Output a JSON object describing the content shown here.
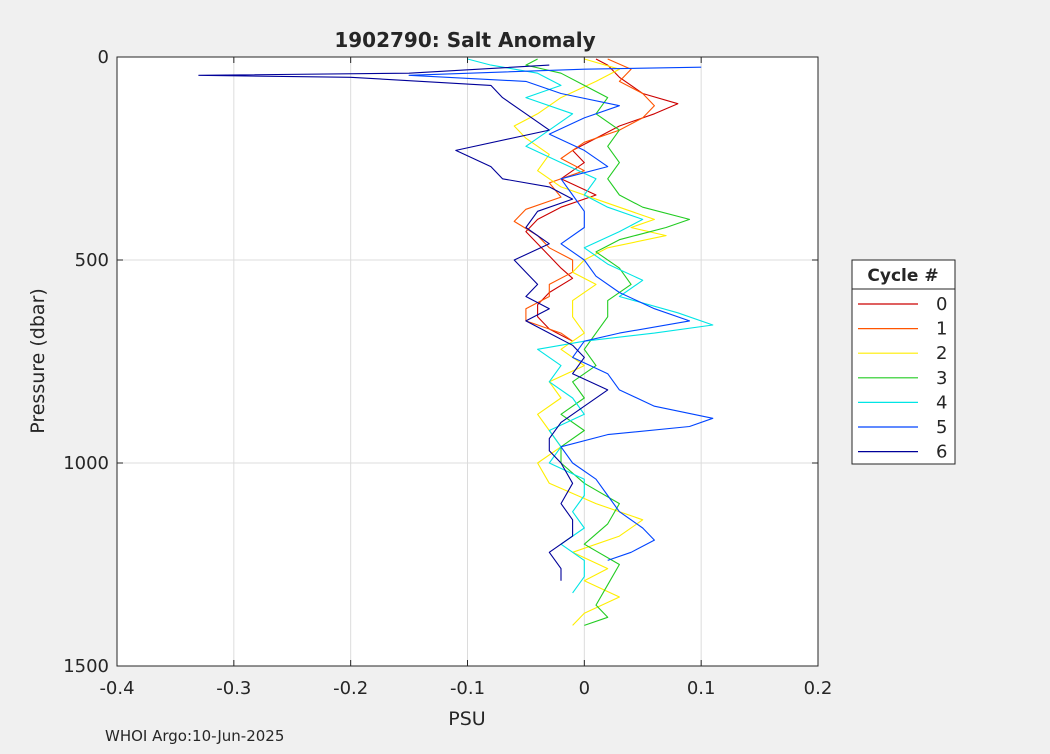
{
  "chart_data": {
    "type": "line",
    "title": "1902790: Salt Anomaly",
    "xlabel": "PSU",
    "ylabel": "Pressure (dbar)",
    "xlim": [
      -0.4,
      0.2
    ],
    "ylim": [
      0,
      1500
    ],
    "y_reversed": true,
    "grid": true,
    "x_ticks": [
      -0.4,
      -0.3,
      -0.2,
      -0.1,
      0,
      0.1,
      0.2
    ],
    "x_tick_labels": [
      "-0.4",
      "-0.3",
      "-0.2",
      "-0.1",
      "0",
      "0.1",
      "0.2"
    ],
    "y_ticks": [
      0,
      500,
      1000,
      1500
    ],
    "y_tick_labels": [
      "0",
      "500",
      "1000",
      "1500"
    ],
    "legend_title": "Cycle #",
    "legend_position": "outside-right",
    "footer": "WHOI Argo:10-Jun-2025",
    "series": [
      {
        "name": "0",
        "color": "#cc0000",
        "points": [
          [
            0.01,
            5
          ],
          [
            0.02,
            20
          ],
          [
            0.03,
            50
          ],
          [
            0.05,
            90
          ],
          [
            0.08,
            115
          ],
          [
            0.06,
            140
          ],
          [
            0.03,
            170
          ],
          [
            0.01,
            200
          ],
          [
            -0.01,
            230
          ],
          [
            0.0,
            260
          ],
          [
            -0.02,
            300
          ],
          [
            0.01,
            340
          ],
          [
            -0.02,
            370
          ],
          [
            -0.04,
            400
          ],
          [
            -0.05,
            430
          ],
          [
            -0.04,
            460
          ],
          [
            -0.03,
            490
          ],
          [
            -0.02,
            520
          ],
          [
            -0.01,
            545
          ],
          [
            -0.03,
            580
          ],
          [
            -0.04,
            610
          ],
          [
            -0.04,
            640
          ],
          [
            -0.03,
            670
          ],
          [
            -0.01,
            700
          ]
        ]
      },
      {
        "name": "1",
        "color": "#ff5500",
        "points": [
          [
            0.02,
            5
          ],
          [
            0.04,
            30
          ],
          [
            0.03,
            60
          ],
          [
            0.05,
            90
          ],
          [
            0.06,
            120
          ],
          [
            0.05,
            150
          ],
          [
            0.03,
            180
          ],
          [
            0.0,
            210
          ],
          [
            -0.02,
            250
          ],
          [
            0.0,
            280
          ],
          [
            -0.03,
            310
          ],
          [
            -0.02,
            345
          ],
          [
            -0.05,
            375
          ],
          [
            -0.06,
            405
          ],
          [
            -0.04,
            440
          ],
          [
            -0.03,
            470
          ],
          [
            -0.01,
            500
          ],
          [
            -0.01,
            530
          ],
          [
            -0.03,
            560
          ],
          [
            -0.03,
            590
          ],
          [
            -0.05,
            620
          ],
          [
            -0.05,
            650
          ],
          [
            -0.02,
            680
          ],
          [
            -0.01,
            700
          ]
        ]
      },
      {
        "name": "2",
        "color": "#ffee00",
        "points": [
          [
            0.0,
            5
          ],
          [
            0.03,
            30
          ],
          [
            0.01,
            60
          ],
          [
            -0.02,
            100
          ],
          [
            -0.04,
            140
          ],
          [
            -0.06,
            170
          ],
          [
            -0.05,
            200
          ],
          [
            -0.03,
            240
          ],
          [
            -0.04,
            280
          ],
          [
            -0.02,
            320
          ],
          [
            0.02,
            360
          ],
          [
            0.06,
            400
          ],
          [
            0.04,
            420
          ],
          [
            0.07,
            440
          ],
          [
            0.02,
            470
          ],
          [
            0.0,
            500
          ],
          [
            -0.01,
            530
          ],
          [
            0.01,
            560
          ],
          [
            -0.01,
            600
          ],
          [
            -0.01,
            640
          ],
          [
            0.0,
            680
          ],
          [
            -0.02,
            720
          ],
          [
            0.0,
            760
          ],
          [
            -0.03,
            800
          ],
          [
            -0.02,
            840
          ],
          [
            -0.04,
            880
          ],
          [
            -0.03,
            920
          ],
          [
            -0.02,
            960
          ],
          [
            -0.04,
            1000
          ],
          [
            -0.03,
            1050
          ],
          [
            0.01,
            1100
          ],
          [
            0.05,
            1140
          ],
          [
            0.03,
            1180
          ],
          [
            -0.01,
            1220
          ],
          [
            0.02,
            1260
          ],
          [
            0.0,
            1290
          ],
          [
            0.03,
            1330
          ],
          [
            0.0,
            1370
          ],
          [
            -0.01,
            1400
          ]
        ]
      },
      {
        "name": "3",
        "color": "#22cc22",
        "points": [
          [
            -0.04,
            5
          ],
          [
            -0.05,
            20
          ],
          [
            -0.02,
            40
          ],
          [
            0.0,
            70
          ],
          [
            0.02,
            100
          ],
          [
            0.01,
            140
          ],
          [
            0.03,
            180
          ],
          [
            0.02,
            220
          ],
          [
            0.03,
            260
          ],
          [
            0.02,
            300
          ],
          [
            0.03,
            340
          ],
          [
            0.05,
            370
          ],
          [
            0.09,
            400
          ],
          [
            0.07,
            420
          ],
          [
            0.03,
            450
          ],
          [
            0.01,
            480
          ],
          [
            0.03,
            520
          ],
          [
            0.04,
            560
          ],
          [
            0.02,
            600
          ],
          [
            0.02,
            640
          ],
          [
            0.01,
            680
          ],
          [
            0.0,
            720
          ],
          [
            0.01,
            760
          ],
          [
            -0.01,
            800
          ],
          [
            0.0,
            840
          ],
          [
            -0.02,
            880
          ],
          [
            0.0,
            920
          ],
          [
            -0.02,
            960
          ],
          [
            -0.02,
            1000
          ],
          [
            0.0,
            1050
          ],
          [
            0.03,
            1100
          ],
          [
            0.02,
            1150
          ],
          [
            0.0,
            1200
          ],
          [
            0.03,
            1250
          ],
          [
            0.02,
            1300
          ],
          [
            0.01,
            1350
          ],
          [
            0.02,
            1380
          ],
          [
            0.0,
            1400
          ]
        ]
      },
      {
        "name": "4",
        "color": "#00e5e5",
        "points": [
          [
            -0.1,
            5
          ],
          [
            -0.08,
            20
          ],
          [
            -0.04,
            40
          ],
          [
            -0.02,
            70
          ],
          [
            -0.05,
            100
          ],
          [
            -0.01,
            140
          ],
          [
            -0.03,
            180
          ],
          [
            -0.05,
            220
          ],
          [
            -0.02,
            260
          ],
          [
            0.01,
            300
          ],
          [
            0.0,
            340
          ],
          [
            0.02,
            370
          ],
          [
            0.05,
            400
          ],
          [
            0.03,
            430
          ],
          [
            0.0,
            470
          ],
          [
            0.02,
            510
          ],
          [
            0.05,
            550
          ],
          [
            0.03,
            590
          ],
          [
            0.08,
            630
          ],
          [
            0.11,
            660
          ],
          [
            0.06,
            680
          ],
          [
            0.0,
            700
          ],
          [
            -0.04,
            720
          ],
          [
            -0.02,
            760
          ],
          [
            -0.03,
            800
          ],
          [
            -0.01,
            840
          ],
          [
            0.0,
            880
          ],
          [
            -0.03,
            920
          ],
          [
            -0.02,
            960
          ],
          [
            -0.03,
            1000
          ],
          [
            0.0,
            1040
          ],
          [
            0.0,
            1080
          ],
          [
            -0.01,
            1120
          ],
          [
            0.0,
            1160
          ],
          [
            -0.02,
            1200
          ],
          [
            0.0,
            1240
          ],
          [
            0.0,
            1280
          ],
          [
            -0.01,
            1320
          ]
        ]
      },
      {
        "name": "5",
        "color": "#0044ff",
        "points": [
          [
            0.1,
            25
          ],
          [
            0.0,
            30
          ],
          [
            -0.15,
            45
          ],
          [
            -0.05,
            60
          ],
          [
            -0.02,
            90
          ],
          [
            0.03,
            120
          ],
          [
            0.0,
            150
          ],
          [
            -0.03,
            190
          ],
          [
            0.0,
            230
          ],
          [
            0.02,
            270
          ],
          [
            -0.02,
            300
          ],
          [
            -0.01,
            340
          ],
          [
            0.0,
            380
          ],
          [
            0.0,
            420
          ],
          [
            -0.02,
            460
          ],
          [
            0.0,
            500
          ],
          [
            0.01,
            540
          ],
          [
            0.03,
            580
          ],
          [
            0.06,
            620
          ],
          [
            0.09,
            650
          ],
          [
            0.03,
            680
          ],
          [
            0.0,
            700
          ],
          [
            -0.01,
            740
          ],
          [
            0.02,
            780
          ],
          [
            0.03,
            820
          ],
          [
            0.06,
            860
          ],
          [
            0.11,
            890
          ],
          [
            0.09,
            910
          ],
          [
            0.02,
            930
          ],
          [
            -0.02,
            960
          ],
          [
            -0.01,
            1000
          ],
          [
            0.01,
            1040
          ],
          [
            0.02,
            1080
          ],
          [
            0.03,
            1120
          ],
          [
            0.05,
            1160
          ],
          [
            0.06,
            1190
          ],
          [
            0.04,
            1220
          ],
          [
            0.02,
            1240
          ]
        ]
      },
      {
        "name": "6",
        "color": "#000099",
        "points": [
          [
            -0.03,
            20
          ],
          [
            -0.15,
            40
          ],
          [
            -0.33,
            45
          ],
          [
            -0.2,
            50
          ],
          [
            -0.08,
            70
          ],
          [
            -0.07,
            100
          ],
          [
            -0.05,
            140
          ],
          [
            -0.03,
            180
          ],
          [
            -0.11,
            230
          ],
          [
            -0.08,
            270
          ],
          [
            -0.07,
            300
          ],
          [
            -0.03,
            320
          ],
          [
            -0.01,
            350
          ],
          [
            -0.04,
            380
          ],
          [
            -0.05,
            420
          ],
          [
            -0.03,
            460
          ],
          [
            -0.06,
            500
          ],
          [
            -0.05,
            530
          ],
          [
            -0.04,
            560
          ],
          [
            -0.05,
            590
          ],
          [
            -0.03,
            620
          ],
          [
            -0.05,
            650
          ],
          [
            -0.03,
            680
          ],
          [
            -0.01,
            710
          ],
          [
            0.0,
            740
          ],
          [
            -0.01,
            780
          ],
          [
            0.02,
            820
          ],
          [
            0.0,
            860
          ],
          [
            -0.02,
            900
          ],
          [
            -0.03,
            940
          ],
          [
            -0.03,
            970
          ],
          [
            -0.02,
            1000
          ],
          [
            -0.01,
            1050
          ],
          [
            -0.02,
            1100
          ],
          [
            -0.01,
            1140
          ],
          [
            -0.01,
            1180
          ],
          [
            -0.03,
            1220
          ],
          [
            -0.02,
            1260
          ],
          [
            -0.02,
            1290
          ]
        ]
      }
    ]
  }
}
